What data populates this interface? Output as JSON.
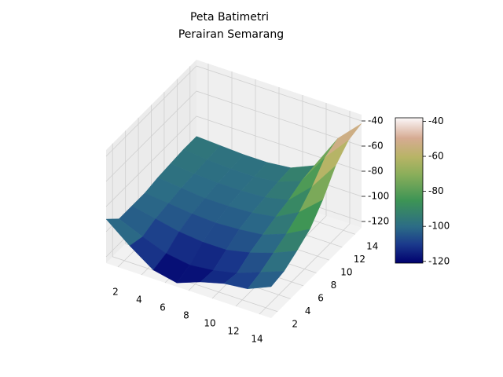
{
  "chart_data": {
    "type": "surface",
    "title": [
      "Peta Batimetri",
      "Perairan Semarang"
    ],
    "x": [
      1,
      3,
      5,
      7,
      9,
      11,
      13,
      15
    ],
    "y": [
      1,
      3,
      5,
      7,
      9,
      11,
      13,
      15
    ],
    "z": [
      [
        -90,
        -105,
        -118,
        -122,
        -115,
        -110,
        -108,
        -100
      ],
      [
        -100,
        -108,
        -115,
        -118,
        -116,
        -112,
        -105,
        -98
      ],
      [
        -100,
        -104,
        -108,
        -110,
        -110,
        -106,
        -100,
        -92
      ],
      [
        -100,
        -102,
        -104,
        -105,
        -104,
        -102,
        -95,
        -85
      ],
      [
        -98,
        -100,
        -102,
        -102,
        -101,
        -98,
        -88,
        -72
      ],
      [
        -97,
        -99,
        -100,
        -100,
        -99,
        -95,
        -78,
        -55
      ],
      [
        -96,
        -98,
        -99,
        -99,
        -97,
        -90,
        -65,
        -45
      ],
      [
        -96,
        -97,
        -98,
        -98,
        -96,
        -88,
        -60,
        -42
      ]
    ],
    "xlim": [
      1,
      15
    ],
    "ylim": [
      1,
      15
    ],
    "zlim": [
      -125,
      -35
    ],
    "xticks": [
      2,
      4,
      6,
      8,
      10,
      12,
      14
    ],
    "yticks": [
      2,
      4,
      6,
      8,
      10,
      12,
      14
    ],
    "zticks": [
      -120,
      -100,
      -80,
      -60,
      -40
    ],
    "colormap": "gist_earth",
    "clim": [
      -121,
      -38
    ],
    "colorbar_ticks": [
      -120,
      -100,
      -80,
      -60,
      -40
    ],
    "grid": true
  }
}
